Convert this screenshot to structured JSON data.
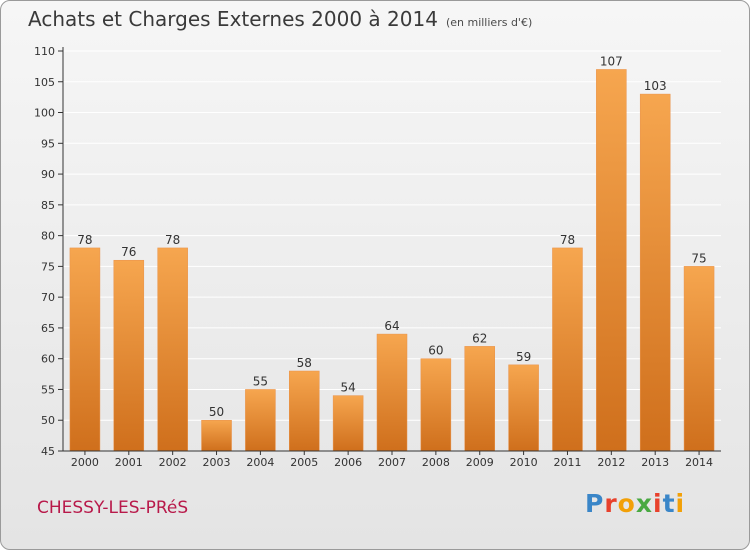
{
  "header": {
    "title": "Achats et Charges Externes 2000 à 2014",
    "unit": "(en milliers d'€)"
  },
  "footer": {
    "commune": "CHESSY-LES-PRéS",
    "brand": "Proxiti",
    "brand_letter_colors": [
      "#3a86c8",
      "#e8412c",
      "#f2a007",
      "#49a942",
      "#e8412c",
      "#3a86c8",
      "#f2a007"
    ]
  },
  "colors": {
    "bar_top": "#f6a64f",
    "bar_bottom": "#cf6f1c",
    "axis": "#333333",
    "grid": "#ffffff"
  },
  "chart_data": {
    "type": "bar",
    "categories": [
      "2000",
      "2001",
      "2002",
      "2003",
      "2004",
      "2005",
      "2006",
      "2007",
      "2008",
      "2009",
      "2010",
      "2011",
      "2012",
      "2013",
      "2014"
    ],
    "values": [
      78,
      76,
      78,
      50,
      55,
      58,
      54,
      64,
      60,
      62,
      59,
      78,
      107,
      103,
      75
    ],
    "ylim": [
      45,
      110
    ],
    "yticks": [
      45,
      50,
      55,
      60,
      65,
      70,
      75,
      80,
      85,
      90,
      95,
      100,
      105,
      110
    ],
    "xlabel": "",
    "ylabel": "",
    "grid": true,
    "data_labels": true
  }
}
